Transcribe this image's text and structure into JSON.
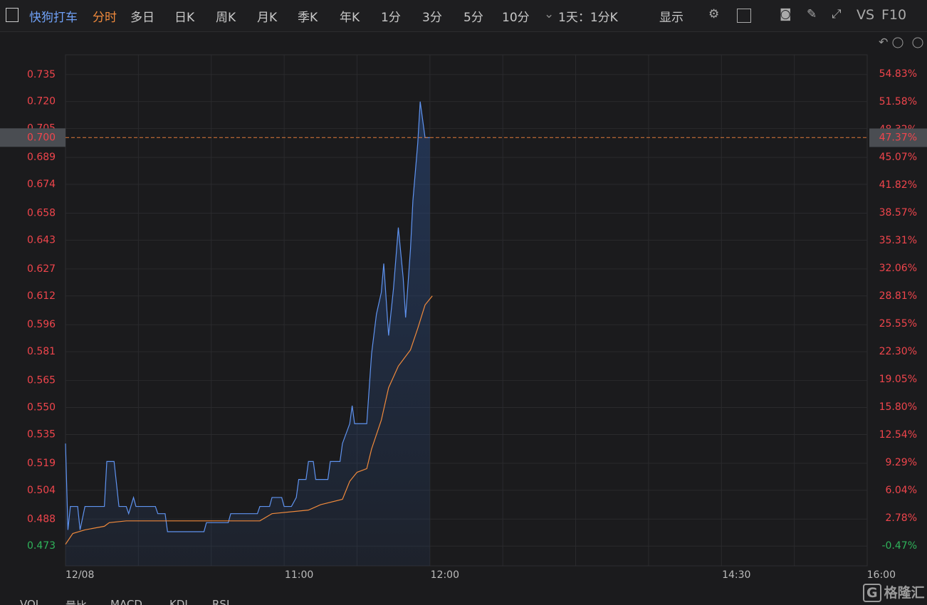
{
  "toolbar": {
    "symbol": "快狗打车",
    "tabs": [
      "分时",
      "多日",
      "日K",
      "周K",
      "月K",
      "季K",
      "年K",
      "1分",
      "3分",
      "5分",
      "10分"
    ],
    "period": "1天：1分K",
    "display": "显示",
    "vs": "VS",
    "f10": "F10"
  },
  "indicator_tabs": [
    "VOL",
    "量比",
    "MACD",
    "KDJ",
    "RSI"
  ],
  "watermark": "格隆汇",
  "chart_data": {
    "type": "line",
    "xlim": [
      0,
      330
    ],
    "xticks": [
      {
        "value": 0,
        "label": "12/08"
      },
      {
        "value": 90,
        "label": "11:00"
      },
      {
        "value": 150,
        "label": "12:00"
      },
      {
        "value": 270,
        "label": "14:30"
      },
      {
        "value": 330,
        "label": "16:00"
      }
    ],
    "ylim": [
      0.462,
      0.746
    ],
    "yticks": [
      {
        "value": 0.473,
        "label": "0.473"
      },
      {
        "value": 0.488,
        "label": "0.488"
      },
      {
        "value": 0.504,
        "label": "0.504"
      },
      {
        "value": 0.519,
        "label": "0.519"
      },
      {
        "value": 0.535,
        "label": "0.535"
      },
      {
        "value": 0.55,
        "label": "0.550"
      },
      {
        "value": 0.565,
        "label": "0.565"
      },
      {
        "value": 0.581,
        "label": "0.581"
      },
      {
        "value": 0.596,
        "label": "0.596"
      },
      {
        "value": 0.612,
        "label": "0.612"
      },
      {
        "value": 0.627,
        "label": "0.627"
      },
      {
        "value": 0.643,
        "label": "0.643"
      },
      {
        "value": 0.658,
        "label": "0.658"
      },
      {
        "value": 0.674,
        "label": "0.674"
      },
      {
        "value": 0.689,
        "label": "0.689"
      },
      {
        "value": 0.705,
        "label": "0.705"
      },
      {
        "value": 0.72,
        "label": "0.720"
      },
      {
        "value": 0.735,
        "label": "0.735"
      }
    ],
    "y2lim": [
      -2.81,
      57.09
    ],
    "y2ticks": [
      {
        "value": -0.47,
        "label": "-0.47%"
      },
      {
        "value": 2.78,
        "label": "2.78%"
      },
      {
        "value": 6.04,
        "label": "6.04%"
      },
      {
        "value": 9.29,
        "label": "9.29%"
      },
      {
        "value": 12.54,
        "label": "12.54%"
      },
      {
        "value": 15.8,
        "label": "15.80%"
      },
      {
        "value": 19.05,
        "label": "19.05%"
      },
      {
        "value": 22.3,
        "label": "22.30%"
      },
      {
        "value": 25.55,
        "label": "25.55%"
      },
      {
        "value": 28.81,
        "label": "28.81%"
      },
      {
        "value": 32.06,
        "label": "32.06%"
      },
      {
        "value": 35.31,
        "label": "35.31%"
      },
      {
        "value": 38.57,
        "label": "38.57%"
      },
      {
        "value": 41.82,
        "label": "41.82%"
      },
      {
        "value": 45.07,
        "label": "45.07%"
      },
      {
        "value": 48.32,
        "label": "48.32%"
      },
      {
        "value": 51.58,
        "label": "51.58%"
      },
      {
        "value": 54.83,
        "label": "54.83%"
      }
    ],
    "up_color": "#f0454c",
    "down_color": "#2fb35a",
    "last_price": {
      "value": 0.7,
      "label": "0.700"
    },
    "last_change": {
      "value": 47.37,
      "label": "47.37%"
    },
    "last_color": "#e07b3a",
    "grid": true,
    "series": [
      {
        "color": "#5f93f0",
        "fill": true,
        "x": [
          0,
          1,
          2,
          5,
          6,
          8,
          16,
          17,
          20,
          22,
          25,
          26,
          28,
          29,
          37,
          38,
          41,
          42,
          57,
          58,
          67,
          68,
          79,
          80,
          84,
          85,
          89,
          90,
          93,
          95,
          96,
          99,
          100,
          102,
          103,
          108,
          109,
          113,
          114,
          117,
          118,
          119,
          124,
          126,
          128,
          130,
          131,
          133,
          135,
          137,
          139,
          140,
          142,
          143,
          145,
          146,
          148,
          150
        ],
        "values": [
          0.53,
          0.482,
          0.495,
          0.495,
          0.482,
          0.495,
          0.495,
          0.52,
          0.52,
          0.495,
          0.495,
          0.491,
          0.5,
          0.495,
          0.495,
          0.491,
          0.491,
          0.481,
          0.481,
          0.486,
          0.486,
          0.491,
          0.491,
          0.495,
          0.495,
          0.5,
          0.5,
          0.495,
          0.495,
          0.5,
          0.51,
          0.51,
          0.52,
          0.52,
          0.51,
          0.51,
          0.52,
          0.52,
          0.53,
          0.541,
          0.551,
          0.541,
          0.541,
          0.58,
          0.602,
          0.614,
          0.63,
          0.59,
          0.616,
          0.65,
          0.622,
          0.6,
          0.638,
          0.665,
          0.697,
          0.72,
          0.7,
          0.7
        ]
      },
      {
        "color": "#f08a3c",
        "fill": false,
        "x": [
          0,
          3,
          8,
          16,
          18,
          25,
          80,
          85,
          100,
          105,
          114,
          117,
          120,
          124,
          126,
          130,
          133,
          137,
          142,
          145,
          148,
          151
        ],
        "values": [
          0.474,
          0.48,
          0.482,
          0.484,
          0.486,
          0.487,
          0.487,
          0.491,
          0.493,
          0.496,
          0.499,
          0.509,
          0.514,
          0.516,
          0.527,
          0.543,
          0.561,
          0.573,
          0.582,
          0.594,
          0.607,
          0.612
        ]
      }
    ]
  }
}
